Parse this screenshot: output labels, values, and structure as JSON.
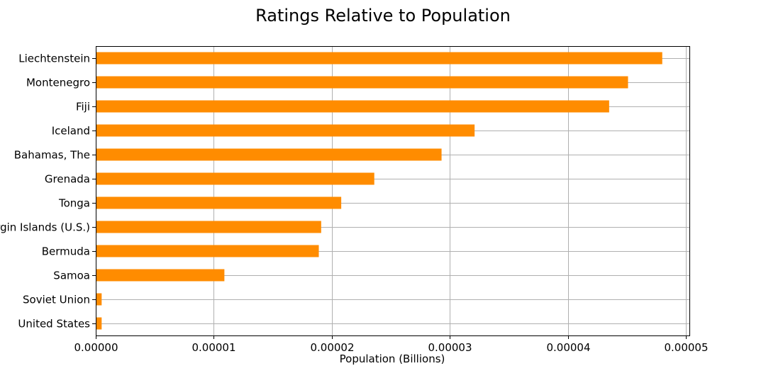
{
  "chart_data": {
    "type": "bar",
    "orientation": "horizontal",
    "title": "Ratings Relative to Population",
    "xlabel": "Population (Billions)",
    "ylabel": "",
    "categories": [
      "United States",
      "Soviet Union",
      "Samoa",
      "Bermuda",
      "Virgin Islands (U.S.)",
      "Tonga",
      "Grenada",
      "Bahamas, The",
      "Iceland",
      "Fiji",
      "Montenegro",
      "Liechtenstein"
    ],
    "values": [
      5e-07,
      5e-07,
      1.09e-05,
      1.89e-05,
      1.91e-05,
      2.08e-05,
      2.36e-05,
      2.93e-05,
      3.21e-05,
      4.35e-05,
      4.51e-05,
      4.8e-05
    ],
    "xlim": [
      0,
      5.03e-05
    ],
    "xticks": [
      "0.00000",
      "0.00001",
      "0.00002",
      "0.00003",
      "0.00004",
      "0.00005"
    ],
    "xtick_values": [
      0,
      1e-05,
      2e-05,
      3e-05,
      4e-05,
      5e-05
    ],
    "bar_color": "#ff8c00",
    "grid": true,
    "legend": "none"
  }
}
